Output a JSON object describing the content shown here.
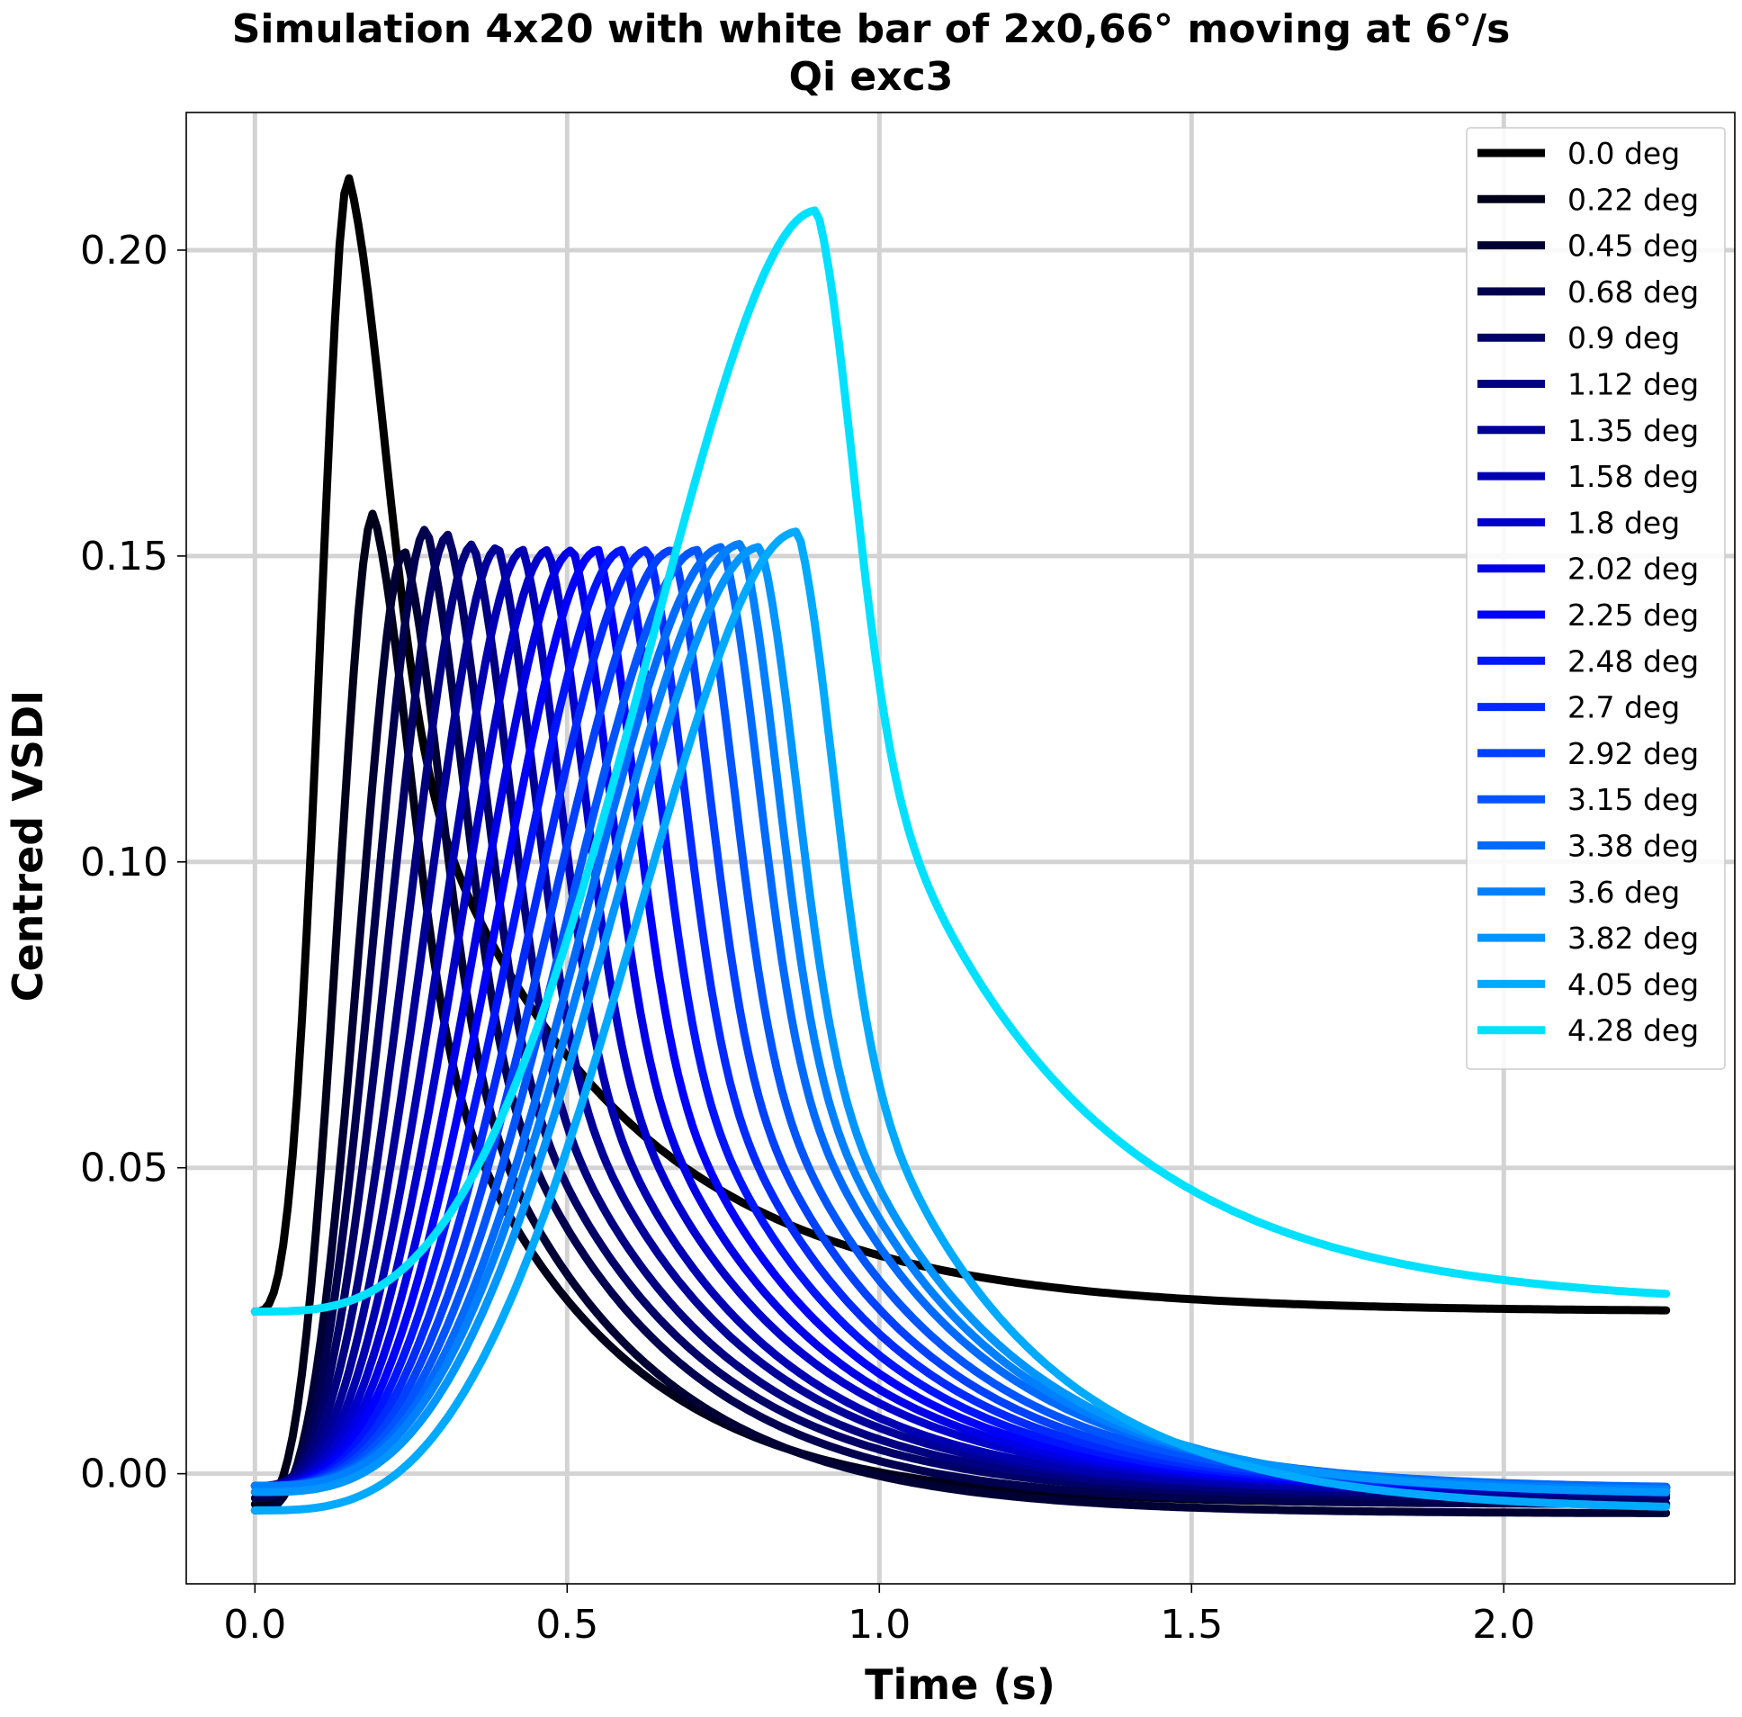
{
  "chart_data": {
    "type": "line",
    "title": "Simulation 4x20 with white bar of 2x0,66° moving at 6°/s",
    "subtitle": "Qi exc3",
    "xlabel": "Time (s)",
    "ylabel": "Centred VSDI",
    "xlim": [
      -0.11,
      2.37
    ],
    "ylim": [
      -0.018,
      0.2225
    ],
    "xticks": [
      0.0,
      0.5,
      1.0,
      1.5,
      2.0
    ],
    "xtick_labels": [
      "0.0",
      "0.5",
      "1.0",
      "1.5",
      "2.0"
    ],
    "yticks": [
      0.0,
      0.05,
      0.1,
      0.15,
      0.2
    ],
    "ytick_labels": [
      "0.00",
      "0.05",
      "0.10",
      "0.15",
      "0.20"
    ],
    "grid": true,
    "legend_position": "top-right",
    "x_range": [
      0.0,
      2.26
    ],
    "series": [
      {
        "name": "0.0 deg",
        "color": "#000000",
        "baseline": 0.0265,
        "peak_x": 0.15,
        "peak_y": 0.212,
        "end_y": 0.0265
      },
      {
        "name": "0.22 deg",
        "color": "#00001b",
        "baseline": -0.005,
        "peak_x": 0.19,
        "peak_y": 0.157,
        "end_y": -0.005
      },
      {
        "name": "0.45 deg",
        "color": "#000035",
        "baseline": -0.006,
        "peak_x": 0.24,
        "peak_y": 0.151,
        "end_y": -0.0065
      },
      {
        "name": "0.68 deg",
        "color": "#00004f",
        "baseline": -0.004,
        "peak_x": 0.275,
        "peak_y": 0.1545,
        "end_y": -0.005
      },
      {
        "name": "0.9 deg",
        "color": "#000066",
        "baseline": -0.003,
        "peak_x": 0.31,
        "peak_y": 0.1535,
        "end_y": -0.004
      },
      {
        "name": "1.12 deg",
        "color": "#000080",
        "baseline": -0.002,
        "peak_x": 0.35,
        "peak_y": 0.152,
        "end_y": -0.0035
      },
      {
        "name": "1.35 deg",
        "color": "#000099",
        "baseline": -0.002,
        "peak_x": 0.39,
        "peak_y": 0.1515,
        "end_y": -0.003
      },
      {
        "name": "1.58 deg",
        "color": "#0000b3",
        "baseline": -0.002,
        "peak_x": 0.43,
        "peak_y": 0.151,
        "end_y": -0.003
      },
      {
        "name": "1.8 deg",
        "color": "#0000cc",
        "baseline": -0.002,
        "peak_x": 0.47,
        "peak_y": 0.151,
        "end_y": -0.0025
      },
      {
        "name": "2.02 deg",
        "color": "#0000e6",
        "baseline": -0.002,
        "peak_x": 0.51,
        "peak_y": 0.151,
        "end_y": -0.0025
      },
      {
        "name": "2.25 deg",
        "color": "#0000ff",
        "baseline": -0.002,
        "peak_x": 0.55,
        "peak_y": 0.151,
        "end_y": -0.0025
      },
      {
        "name": "2.48 deg",
        "color": "#0015ff",
        "baseline": -0.002,
        "peak_x": 0.59,
        "peak_y": 0.151,
        "end_y": -0.0025
      },
      {
        "name": "2.7 deg",
        "color": "#002aff",
        "baseline": -0.002,
        "peak_x": 0.63,
        "peak_y": 0.151,
        "end_y": -0.0025
      },
      {
        "name": "2.92 deg",
        "color": "#0040ff",
        "baseline": -0.002,
        "peak_x": 0.67,
        "peak_y": 0.151,
        "end_y": -0.0025
      },
      {
        "name": "3.15 deg",
        "color": "#0055ff",
        "baseline": -0.002,
        "peak_x": 0.71,
        "peak_y": 0.151,
        "end_y": -0.0025
      },
      {
        "name": "3.38 deg",
        "color": "#006aff",
        "baseline": -0.002,
        "peak_x": 0.75,
        "peak_y": 0.1515,
        "end_y": -0.0025
      },
      {
        "name": "3.6 deg",
        "color": "#0080ff",
        "baseline": -0.002,
        "peak_x": 0.78,
        "peak_y": 0.152,
        "end_y": -0.003
      },
      {
        "name": "3.82 deg",
        "color": "#0095ff",
        "baseline": -0.003,
        "peak_x": 0.81,
        "peak_y": 0.1515,
        "end_y": -0.0035
      },
      {
        "name": "4.05 deg",
        "color": "#00aaff",
        "baseline": -0.006,
        "peak_x": 0.87,
        "peak_y": 0.154,
        "end_y": -0.006
      },
      {
        "name": "4.28 deg",
        "color": "#00e1ff",
        "baseline": 0.0265,
        "peak_x": 0.9,
        "peak_y": 0.2065,
        "end_y": 0.0275
      }
    ]
  }
}
